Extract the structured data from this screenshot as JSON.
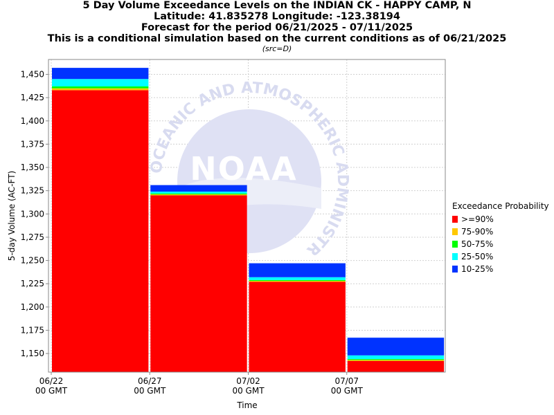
{
  "titles": {
    "line1": "5 Day Volume Exceedance Levels on the INDIAN CK - HAPPY CAMP, N",
    "line2": "Latitude: 41.835278 Longitude: -123.38194",
    "line3": "Forecast for the period 06/21/2025 - 07/11/2025",
    "line4": "This is a conditional simulation based on the current conditions as of 06/21/2025",
    "source_note": "(src=D)"
  },
  "watermark": {
    "logo_text": "NOAA",
    "ring_text": "OCEANIC AND ATMOSPHERIC ADMINISTRATION"
  },
  "chart_data": {
    "type": "bar",
    "stacked": true,
    "xlabel": "Time",
    "ylabel": "5-day Volume (AC-FT)",
    "ylim": [
      1130,
      1466
    ],
    "y_ticks": [
      "1,150",
      "1,175",
      "1,200",
      "1,225",
      "1,250",
      "1,275",
      "1,300",
      "1,325",
      "1,350",
      "1,375",
      "1,400",
      "1,425",
      "1,450"
    ],
    "y_tick_values": [
      1150,
      1175,
      1200,
      1225,
      1250,
      1275,
      1300,
      1325,
      1350,
      1375,
      1400,
      1425,
      1450
    ],
    "x_ticks": [
      {
        "date": "06/22",
        "time": "00 GMT",
        "day": 1
      },
      {
        "date": "06/27",
        "time": "00 GMT",
        "day": 6
      },
      {
        "date": "07/02",
        "time": "00 GMT",
        "day": 11
      },
      {
        "date": "07/07",
        "time": "00 GMT",
        "day": 16
      }
    ],
    "xlim_days": [
      1,
      21
    ],
    "bars": [
      {
        "start_day": 1,
        "end_day": 5.9,
        "levels": [
          1433,
          1435,
          1437,
          1445,
          1457
        ]
      },
      {
        "start_day": 6,
        "end_day": 10.9,
        "levels": [
          1320,
          1321,
          1322,
          1324,
          1331
        ]
      },
      {
        "start_day": 11,
        "end_day": 15.9,
        "levels": [
          1227,
          1228,
          1229,
          1232,
          1247
        ]
      },
      {
        "start_day": 16,
        "end_day": 20.9,
        "levels": [
          1142,
          1143,
          1144,
          1148,
          1167
        ]
      }
    ],
    "legend": {
      "title": "Exceedance Probability",
      "placement": "right",
      "items": [
        {
          "label": ">=90%",
          "color": "#ff0000"
        },
        {
          "label": "75-90%",
          "color": "#ffc800"
        },
        {
          "label": "50-75%",
          "color": "#00ff00"
        },
        {
          "label": "25-50%",
          "color": "#00ffff"
        },
        {
          "label": "10-25%",
          "color": "#0033ff"
        }
      ]
    },
    "grid": true,
    "legend_placement": "right"
  }
}
